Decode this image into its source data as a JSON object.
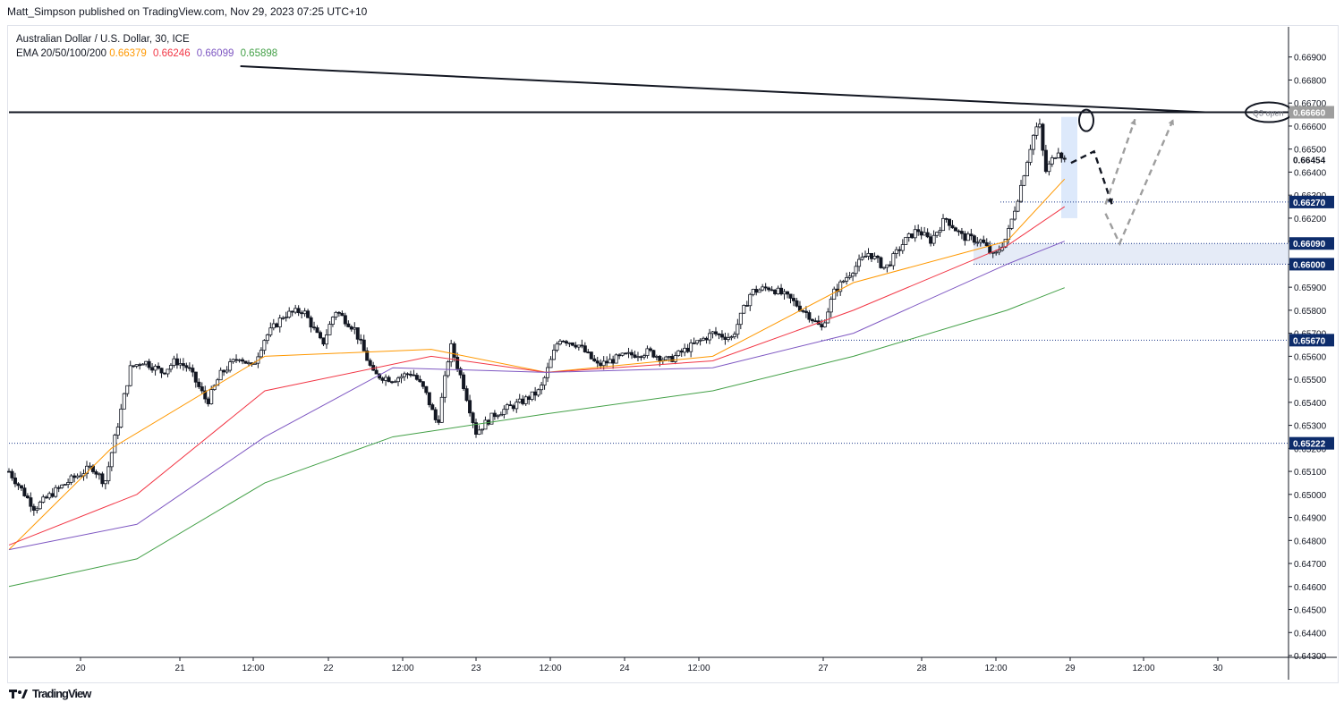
{
  "header": {
    "publisher": "Matt_Simpson published on TradingView.com, Nov 29, 2023 07:25 UTC+10"
  },
  "legend": {
    "symbol": "Australian Dollar / U.S. Dollar, 30, ICE",
    "ema_label": "EMA 20/50/100/200",
    "ema_values": [
      "0.66379",
      "0.66246",
      "0.66099",
      "0.65898"
    ],
    "ema_colors": [
      "#ff9800",
      "#f23645",
      "#7e57c2",
      "#43a047"
    ]
  },
  "footer": {
    "brand": "TradingView",
    "logo": "tradingview-logo-icon"
  },
  "chart_data": {
    "type": "candlestick",
    "symbol": "AUD/USD",
    "timeframe": "30",
    "ylim": [
      0.643,
      0.67
    ],
    "y_ticks": [
      "0.66900",
      "0.66800",
      "0.66700",
      "0.66600",
      "0.66500",
      "0.66400",
      "0.66300",
      "0.66200",
      "0.66100",
      "0.66000",
      "0.65900",
      "0.65800",
      "0.65700",
      "0.65600",
      "0.65500",
      "0.65400",
      "0.65300",
      "0.65200",
      "0.65100",
      "0.65000",
      "0.64900",
      "0.64800",
      "0.64700",
      "0.64600",
      "0.64500",
      "0.64400",
      "0.64300"
    ],
    "x_ticks": [
      "20",
      "21",
      "12:00",
      "22",
      "12:00",
      "23",
      "12:00",
      "24",
      "12:00",
      "27",
      "28",
      "12:00",
      "29",
      "12:00",
      "30"
    ],
    "price_labels": [
      {
        "text": "0.66660",
        "value": 0.6666,
        "style": "grey"
      },
      {
        "text": "0.66454",
        "value": 0.66454,
        "style": "plain"
      },
      {
        "text": "0.66270",
        "value": 0.6627,
        "style": "navy"
      },
      {
        "text": "0.66090",
        "value": 0.6609,
        "style": "navy"
      },
      {
        "text": "0.66000",
        "value": 0.66,
        "style": "navy"
      },
      {
        "text": "0.65670",
        "value": 0.6567,
        "style": "navy"
      },
      {
        "text": "0.65222",
        "value": 0.65222,
        "style": "navy"
      }
    ],
    "annotations": {
      "q3_open": "Q3 open",
      "q3_open_level": 0.6666
    },
    "candle_anchors": [
      [
        0,
        0.651
      ],
      [
        0.02,
        0.6494
      ],
      [
        0.035,
        0.6501
      ],
      [
        0.05,
        0.6507
      ],
      [
        0.065,
        0.6512
      ],
      [
        0.075,
        0.6505
      ],
      [
        0.085,
        0.653
      ],
      [
        0.095,
        0.6555
      ],
      [
        0.105,
        0.6558
      ],
      [
        0.12,
        0.6553
      ],
      [
        0.13,
        0.6558
      ],
      [
        0.14,
        0.6555
      ],
      [
        0.155,
        0.654
      ],
      [
        0.165,
        0.6552
      ],
      [
        0.18,
        0.656
      ],
      [
        0.19,
        0.6555
      ],
      [
        0.2,
        0.6568
      ],
      [
        0.215,
        0.6578
      ],
      [
        0.23,
        0.658
      ],
      [
        0.245,
        0.6565
      ],
      [
        0.255,
        0.658
      ],
      [
        0.27,
        0.6572
      ],
      [
        0.285,
        0.6552
      ],
      [
        0.3,
        0.655
      ],
      [
        0.315,
        0.6553
      ],
      [
        0.325,
        0.6545
      ],
      [
        0.335,
        0.653
      ],
      [
        0.345,
        0.6565
      ],
      [
        0.355,
        0.6548
      ],
      [
        0.365,
        0.6527
      ],
      [
        0.38,
        0.6535
      ],
      [
        0.4,
        0.654
      ],
      [
        0.415,
        0.6545
      ],
      [
        0.43,
        0.6568
      ],
      [
        0.445,
        0.6565
      ],
      [
        0.46,
        0.6556
      ],
      [
        0.48,
        0.656
      ],
      [
        0.5,
        0.6562
      ],
      [
        0.515,
        0.6558
      ],
      [
        0.535,
        0.6565
      ],
      [
        0.55,
        0.657
      ],
      [
        0.565,
        0.6568
      ],
      [
        0.58,
        0.6588
      ],
      [
        0.595,
        0.659
      ],
      [
        0.61,
        0.6585
      ],
      [
        0.625,
        0.6578
      ],
      [
        0.635,
        0.6572
      ],
      [
        0.645,
        0.6588
      ],
      [
        0.66,
        0.6598
      ],
      [
        0.672,
        0.6605
      ],
      [
        0.685,
        0.6598
      ],
      [
        0.7,
        0.661
      ],
      [
        0.71,
        0.6615
      ],
      [
        0.72,
        0.661
      ],
      [
        0.732,
        0.662
      ],
      [
        0.745,
        0.6612
      ],
      [
        0.76,
        0.661
      ],
      [
        0.77,
        0.6603
      ],
      [
        0.78,
        0.6612
      ],
      [
        0.79,
        0.6632
      ],
      [
        0.8,
        0.6655
      ],
      [
        0.805,
        0.6662
      ],
      [
        0.81,
        0.664
      ],
      [
        0.815,
        0.6645
      ],
      [
        0.82,
        0.665
      ],
      [
        0.825,
        0.6645
      ]
    ],
    "ema_series": [
      {
        "period": 20,
        "points": [
          [
            0,
            0.6476
          ],
          [
            0.08,
            0.652
          ],
          [
            0.2,
            0.656
          ],
          [
            0.33,
            0.6563
          ],
          [
            0.42,
            0.6553
          ],
          [
            0.55,
            0.656
          ],
          [
            0.66,
            0.6592
          ],
          [
            0.78,
            0.661
          ],
          [
            0.825,
            0.6637
          ]
        ]
      },
      {
        "period": 50,
        "points": [
          [
            0,
            0.6478
          ],
          [
            0.1,
            0.65
          ],
          [
            0.2,
            0.6545
          ],
          [
            0.33,
            0.656
          ],
          [
            0.42,
            0.6553
          ],
          [
            0.55,
            0.6558
          ],
          [
            0.66,
            0.658
          ],
          [
            0.78,
            0.6608
          ],
          [
            0.825,
            0.6625
          ]
        ]
      },
      {
        "period": 100,
        "points": [
          [
            0,
            0.6476
          ],
          [
            0.1,
            0.6487
          ],
          [
            0.2,
            0.6525
          ],
          [
            0.3,
            0.6555
          ],
          [
            0.42,
            0.6553
          ],
          [
            0.55,
            0.6555
          ],
          [
            0.66,
            0.657
          ],
          [
            0.78,
            0.66
          ],
          [
            0.825,
            0.661
          ]
        ]
      },
      {
        "period": 200,
        "points": [
          [
            0,
            0.646
          ],
          [
            0.1,
            0.6472
          ],
          [
            0.2,
            0.6505
          ],
          [
            0.3,
            0.6525
          ],
          [
            0.42,
            0.6535
          ],
          [
            0.55,
            0.6545
          ],
          [
            0.66,
            0.656
          ],
          [
            0.78,
            0.658
          ],
          [
            0.825,
            0.65898
          ]
        ]
      }
    ],
    "drawings": {
      "trendline": [
        [
          0.013,
          0.6686
        ],
        [
          0.935,
          0.6666
        ]
      ],
      "horizontal": 0.6666,
      "zone": [
        0.66,
        0.6609
      ],
      "black_path": [
        [
          0.83,
          0.6644
        ],
        [
          0.848,
          0.6649
        ],
        [
          0.862,
          0.6626
        ]
      ],
      "grey_path_1": [
        [
          0.857,
          0.6626
        ],
        [
          0.88,
          0.6663
        ]
      ],
      "grey_path_2": [
        [
          0.857,
          0.6622
        ],
        [
          0.868,
          0.6609
        ],
        [
          0.91,
          0.6663
        ]
      ]
    }
  }
}
